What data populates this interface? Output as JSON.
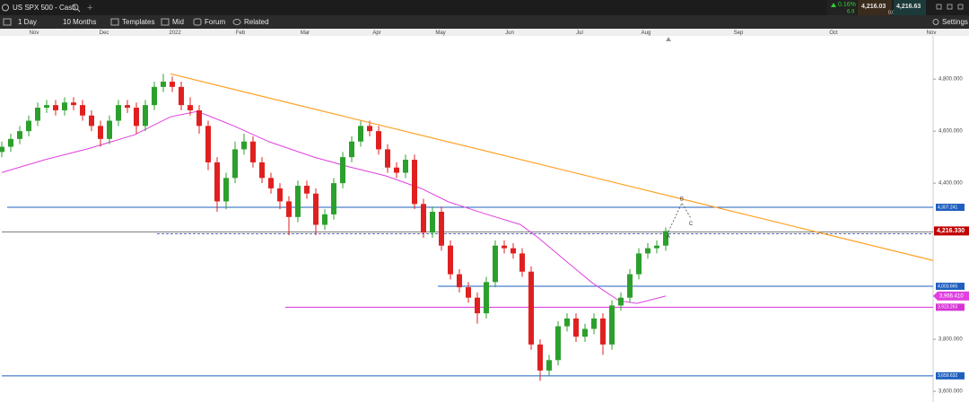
{
  "toolbar": {
    "instrument": "US SPX 500 - Cash",
    "change": "0.16%",
    "change_points": "6.9",
    "bid": "4,216.03",
    "spread": "0.0",
    "ask": "4,216.63",
    "settings": "Settings"
  },
  "menu": [
    "1 Day",
    "10 Months",
    "Templates",
    "Mid",
    "Forum",
    "Related"
  ],
  "chart_data": {
    "type": "candlestick",
    "up_color": "#2ca02c",
    "down_color": "#e02020",
    "candles": [
      [
        4520,
        4560,
        4500,
        4540
      ],
      [
        4540,
        4590,
        4520,
        4570
      ],
      [
        4570,
        4620,
        4550,
        4600
      ],
      [
        4600,
        4660,
        4580,
        4640
      ],
      [
        4640,
        4710,
        4620,
        4690
      ],
      [
        4690,
        4720,
        4670,
        4700
      ],
      [
        4700,
        4720,
        4660,
        4680
      ],
      [
        4680,
        4730,
        4660,
        4710
      ],
      [
        4710,
        4730,
        4680,
        4700
      ],
      [
        4700,
        4720,
        4640,
        4660
      ],
      [
        4660,
        4680,
        4600,
        4620
      ],
      [
        4620,
        4640,
        4540,
        4570
      ],
      [
        4570,
        4660,
        4550,
        4640
      ],
      [
        4640,
        4720,
        4620,
        4700
      ],
      [
        4700,
        4720,
        4670,
        4690
      ],
      [
        4690,
        4710,
        4590,
        4620
      ],
      [
        4620,
        4720,
        4600,
        4700
      ],
      [
        4700,
        4790,
        4680,
        4770
      ],
      [
        4770,
        4820,
        4750,
        4790
      ],
      [
        4790,
        4810,
        4750,
        4770
      ],
      [
        4770,
        4790,
        4680,
        4700
      ],
      [
        4700,
        4730,
        4660,
        4680
      ],
      [
        4680,
        4700,
        4590,
        4620
      ],
      [
        4620,
        4640,
        4450,
        4480
      ],
      [
        4480,
        4500,
        4290,
        4330
      ],
      [
        4330,
        4440,
        4300,
        4420
      ],
      [
        4420,
        4560,
        4400,
        4530
      ],
      [
        4530,
        4590,
        4510,
        4560
      ],
      [
        4560,
        4580,
        4460,
        4480
      ],
      [
        4480,
        4500,
        4400,
        4420
      ],
      [
        4420,
        4440,
        4360,
        4380
      ],
      [
        4380,
        4400,
        4300,
        4330
      ],
      [
        4330,
        4350,
        4200,
        4270
      ],
      [
        4270,
        4410,
        4250,
        4390
      ],
      [
        4390,
        4410,
        4340,
        4360
      ],
      [
        4360,
        4380,
        4200,
        4240
      ],
      [
        4240,
        4300,
        4220,
        4280
      ],
      [
        4280,
        4420,
        4260,
        4400
      ],
      [
        4400,
        4520,
        4380,
        4500
      ],
      [
        4500,
        4580,
        4480,
        4560
      ],
      [
        4560,
        4640,
        4540,
        4620
      ],
      [
        4620,
        4640,
        4580,
        4600
      ],
      [
        4600,
        4620,
        4510,
        4530
      ],
      [
        4530,
        4550,
        4440,
        4460
      ],
      [
        4460,
        4480,
        4420,
        4440
      ],
      [
        4440,
        4510,
        4420,
        4490
      ],
      [
        4490,
        4510,
        4300,
        4320
      ],
      [
        4320,
        4340,
        4190,
        4210
      ],
      [
        4210,
        4310,
        4190,
        4290
      ],
      [
        4290,
        4310,
        4140,
        4160
      ],
      [
        4160,
        4180,
        4030,
        4050
      ],
      [
        4050,
        4070,
        3980,
        4000
      ],
      [
        4000,
        4020,
        3940,
        3960
      ],
      [
        3960,
        3980,
        3860,
        3900
      ],
      [
        3900,
        4040,
        3880,
        4020
      ],
      [
        4020,
        4180,
        4000,
        4160
      ],
      [
        4160,
        4180,
        4130,
        4150
      ],
      [
        4150,
        4170,
        4110,
        4130
      ],
      [
        4130,
        4150,
        4040,
        4060
      ],
      [
        4060,
        4080,
        3760,
        3780
      ],
      [
        3780,
        3800,
        3640,
        3680
      ],
      [
        3680,
        3740,
        3660,
        3720
      ],
      [
        3720,
        3870,
        3700,
        3850
      ],
      [
        3850,
        3900,
        3830,
        3880
      ],
      [
        3880,
        3900,
        3790,
        3810
      ],
      [
        3810,
        3860,
        3790,
        3840
      ],
      [
        3840,
        3900,
        3820,
        3880
      ],
      [
        3880,
        3900,
        3740,
        3780
      ],
      [
        3780,
        3950,
        3760,
        3930
      ],
      [
        3930,
        3980,
        3910,
        3960
      ],
      [
        3960,
        4070,
        3940,
        4050
      ],
      [
        4050,
        4150,
        4030,
        4130
      ],
      [
        4130,
        4170,
        4110,
        4150
      ],
      [
        4150,
        4180,
        4130,
        4160
      ],
      [
        4160,
        4230,
        4140,
        4216
      ]
    ],
    "xlim": [
      -0.2,
      103.8
    ],
    "xticks": [
      {
        "value": 3.6,
        "label": "Nov"
      },
      {
        "value": 11.4,
        "label": "Dec"
      },
      {
        "value": 19.3,
        "label": "2022"
      },
      {
        "value": 26.6,
        "label": "Feb"
      },
      {
        "value": 33.8,
        "label": "Mar"
      },
      {
        "value": 41.8,
        "label": "Apr"
      },
      {
        "value": 48.9,
        "label": "May"
      },
      {
        "value": 56.6,
        "label": "Jun"
      },
      {
        "value": 64.4,
        "label": "Jul"
      },
      {
        "value": 71.8,
        "label": "Aug"
      },
      {
        "value": 82.1,
        "label": "Sep"
      },
      {
        "value": 92.7,
        "label": "Oct"
      },
      {
        "value": 103.6,
        "label": "Nov"
      }
    ],
    "ylim": [
      3559,
      4966
    ],
    "yticks": [
      {
        "value": 3600,
        "label": "3,600.000"
      },
      {
        "value": 3800,
        "label": "3,800.000"
      },
      {
        "value": 4400,
        "label": "4,400.000"
      },
      {
        "value": 4600,
        "label": "4,600.000"
      },
      {
        "value": 4800,
        "label": "4,800.000"
      }
    ],
    "moving_average": {
      "color": "#e040e0",
      "label": "3,966.410",
      "x": [
        0,
        4.8,
        9.8,
        14.8,
        18.8,
        21.8,
        25.8,
        29.8,
        34.8,
        38.8,
        42.8,
        46.8,
        49.8,
        53.8,
        57.8,
        59.8,
        62.8,
        65.8,
        68.8,
        70.8,
        74
      ],
      "values": [
        4441,
        4490,
        4534,
        4586,
        4655,
        4676,
        4621,
        4559,
        4500,
        4462,
        4428,
        4379,
        4328,
        4283,
        4241,
        4190,
        4103,
        4017,
        3948,
        3938,
        3966.41
      ]
    },
    "trendline": {
      "color": "#ffa020",
      "x": [
        18.8,
        103.8
      ],
      "values": [
        4820,
        4103
      ]
    },
    "price_lines": [
      {
        "value": 4307.241,
        "label": "4,307.241",
        "color": "#1f5fbf",
        "from": 0.6
      },
      {
        "value": 4216.33,
        "label": "4,216.330",
        "color": "#c00000",
        "from": 0,
        "dashed_from": 17.3
      },
      {
        "value": 4003.665,
        "label": "4,003.665",
        "color": "#1f5fbf",
        "from": 48.6
      },
      {
        "value": 3923.263,
        "label": "3,923.263",
        "color": "#d633d6",
        "from": 31.6
      },
      {
        "value": 3659.632,
        "label": "3,659.632",
        "color": "#1f5fbf",
        "from": 0
      }
    ],
    "wave": [
      {
        "label": "A",
        "x": 74.3,
        "y": 4214
      },
      {
        "label": "B",
        "x": 75.8,
        "y": 4324
      },
      {
        "label": "C",
        "x": 76.8,
        "y": 4265
      }
    ]
  }
}
